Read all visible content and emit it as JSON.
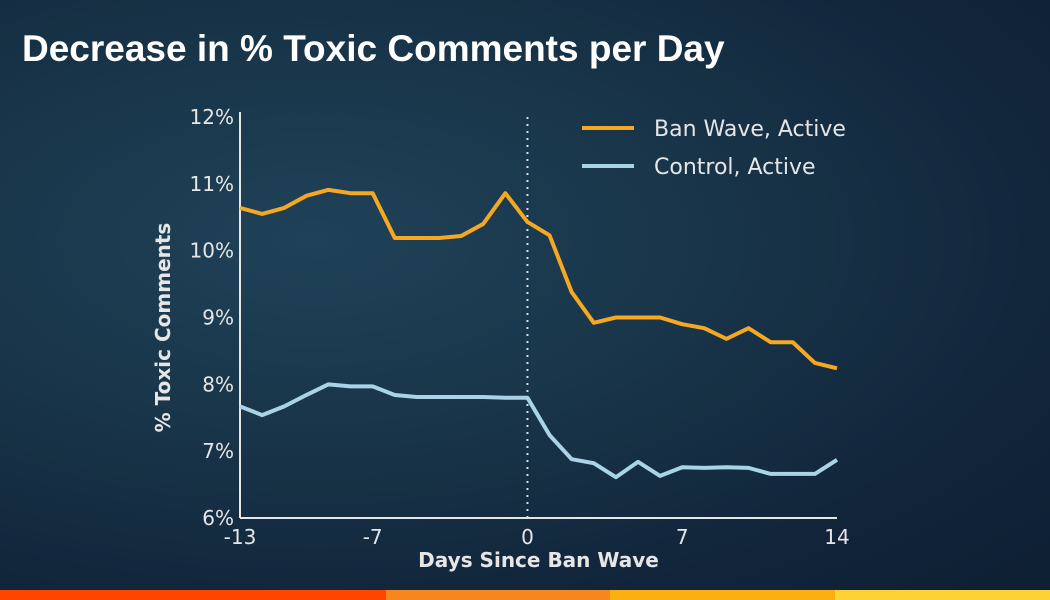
{
  "title": "Decrease in % Toxic Comments per Day",
  "colors": {
    "ban_wave": "#f7a823",
    "control": "#a9d3e6",
    "axis": "#e6e6e6",
    "stripe": [
      "#ff4500",
      "#f7861e",
      "#fcb00f",
      "#fdd235"
    ]
  },
  "chart_data": {
    "type": "line",
    "title": "Decrease in % Toxic Comments per Day",
    "xlabel": "Days Since Ban Wave",
    "ylabel": "% Toxic Comments",
    "xlim": [
      -13,
      14
    ],
    "ylim": [
      6,
      12
    ],
    "xticks": [
      -13,
      -7,
      0,
      7,
      14
    ],
    "yticks": [
      6,
      7,
      8,
      9,
      10,
      11,
      12
    ],
    "ytick_labels": [
      "6%",
      "7%",
      "8%",
      "9%",
      "10%",
      "11%",
      "12%"
    ],
    "xtick_labels": [
      "-13",
      "-7",
      "0",
      "7",
      "14"
    ],
    "grid": false,
    "legend": "top-right",
    "vline": {
      "x": 0,
      "style": "dotted"
    },
    "x": [
      -13,
      -12,
      -11,
      -10,
      -9,
      -8,
      -7,
      -6,
      -5,
      -4,
      -3,
      -2,
      -1,
      0,
      1,
      2,
      3,
      4,
      5,
      6,
      7,
      8,
      9,
      10,
      11,
      12,
      13,
      14
    ],
    "series": [
      {
        "name": "Ban Wave, Active",
        "values": [
          10.64,
          10.55,
          10.64,
          10.82,
          10.91,
          10.86,
          10.86,
          10.19,
          10.19,
          10.19,
          10.22,
          10.4,
          10.86,
          10.43,
          10.23,
          9.38,
          8.92,
          9.0,
          9.0,
          9.0,
          8.9,
          8.84,
          8.68,
          8.84,
          8.63,
          8.63,
          8.32,
          8.24
        ]
      },
      {
        "name": "Control, Active",
        "values": [
          7.67,
          7.54,
          7.67,
          7.84,
          8.0,
          7.97,
          7.97,
          7.84,
          7.81,
          7.81,
          7.81,
          7.81,
          7.8,
          7.8,
          7.24,
          6.88,
          6.82,
          6.61,
          6.84,
          6.63,
          6.76,
          6.75,
          6.76,
          6.75,
          6.66,
          6.66,
          6.66,
          6.87
        ]
      }
    ]
  }
}
